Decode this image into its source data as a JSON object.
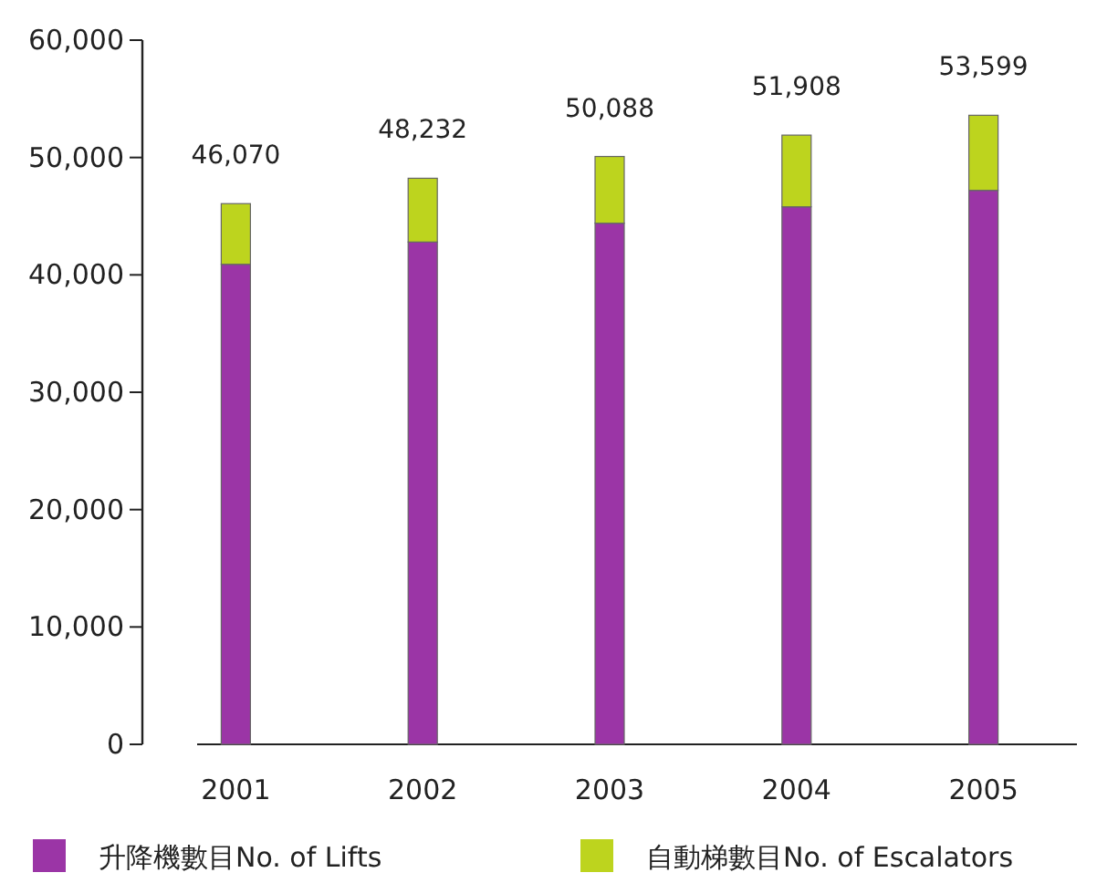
{
  "chart_data": {
    "type": "bar",
    "stacked": true,
    "categories": [
      "2001",
      "2002",
      "2003",
      "2004",
      "2005"
    ],
    "series": [
      {
        "name": "升降機數目No. of Lifts",
        "color": "#9b35a6",
        "values": [
          40900,
          42800,
          44400,
          45800,
          47200
        ]
      },
      {
        "name": "自動梯數目No. of Escalators",
        "color": "#bdd41e",
        "values": [
          5170,
          5432,
          5688,
          6108,
          6399
        ]
      }
    ],
    "totals": [
      "46,070",
      "48,232",
      "50,088",
      "51,908",
      "53,599"
    ],
    "ylim": [
      0,
      60000
    ],
    "yticks": [
      {
        "value": 0,
        "label": "0"
      },
      {
        "value": 10000,
        "label": "10,000"
      },
      {
        "value": 20000,
        "label": "20,000"
      },
      {
        "value": 30000,
        "label": "30,000"
      },
      {
        "value": 40000,
        "label": "40,000"
      },
      {
        "value": 50000,
        "label": "50,000"
      },
      {
        "value": 60000,
        "label": "60,000"
      }
    ],
    "grid": false,
    "legend": "bottom"
  }
}
